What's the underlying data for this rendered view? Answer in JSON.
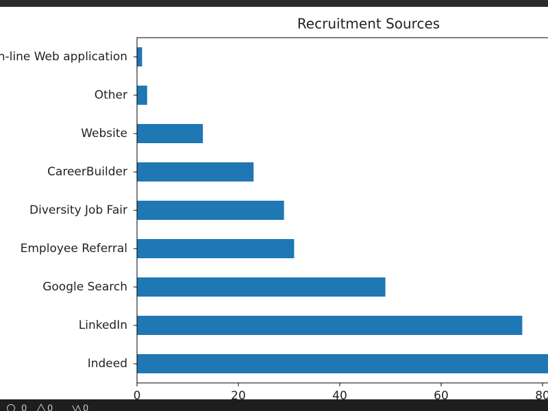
{
  "chart_data": {
    "type": "barh",
    "title": "Recruitment Sources",
    "categories": [
      "Indeed",
      "LinkedIn",
      "Google Search",
      "Employee Referral",
      "Diversity Job Fair",
      "CareerBuilder",
      "Website",
      "Other",
      "On-line Web application"
    ],
    "values": [
      87,
      76,
      49,
      31,
      29,
      23,
      13,
      2,
      1
    ],
    "color": "#1f77b4",
    "xlim": [
      0,
      91.35
    ],
    "xticks": [
      0,
      20,
      40,
      60,
      80
    ]
  },
  "status_bar": {
    "errors": "0",
    "warnings": "0",
    "ports": "0"
  }
}
